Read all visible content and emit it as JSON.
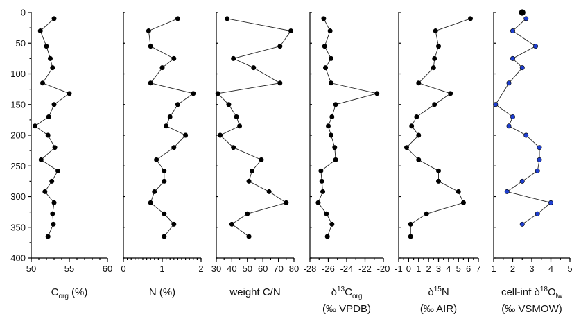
{
  "depth_axis": {
    "ticks": [
      0,
      50,
      100,
      150,
      200,
      250,
      300,
      350,
      400
    ],
    "ylim": [
      400,
      0
    ]
  },
  "chart_data": [
    {
      "type": "scatter",
      "title_main": "C",
      "title_sub": "org",
      "title_tail": " (%)",
      "xlim": [
        50,
        60
      ],
      "xticks": [
        "50",
        "55",
        "60"
      ],
      "xtick_values": [
        50,
        55,
        60
      ],
      "minor_step": 1,
      "marker_color": "#000000",
      "points": [
        [
          53,
          10
        ],
        [
          51.2,
          30
        ],
        [
          52,
          55
        ],
        [
          52.5,
          75
        ],
        [
          52.8,
          90
        ],
        [
          51.5,
          115
        ],
        [
          55,
          132
        ],
        [
          53,
          150
        ],
        [
          52.3,
          170
        ],
        [
          50.5,
          185
        ],
        [
          52.2,
          200
        ],
        [
          53.1,
          220
        ],
        [
          51.3,
          240
        ],
        [
          53.5,
          258
        ],
        [
          52.7,
          275
        ],
        [
          51.8,
          292
        ],
        [
          53,
          310
        ],
        [
          52.8,
          328
        ],
        [
          52.9,
          345
        ],
        [
          52.2,
          365
        ]
      ]
    },
    {
      "type": "scatter",
      "title_main": "N (%)",
      "xlim": [
        0,
        2
      ],
      "xticks": [
        "0",
        "1",
        "2"
      ],
      "xtick_values": [
        0,
        1,
        2
      ],
      "minor_step": 0.1,
      "marker_color": "#000000",
      "points": [
        [
          1.4,
          10
        ],
        [
          0.65,
          30
        ],
        [
          0.7,
          55
        ],
        [
          1.3,
          75
        ],
        [
          1.0,
          90
        ],
        [
          0.7,
          115
        ],
        [
          1.8,
          132
        ],
        [
          1.4,
          150
        ],
        [
          1.2,
          170
        ],
        [
          1.1,
          185
        ],
        [
          1.6,
          200
        ],
        [
          1.3,
          220
        ],
        [
          0.85,
          240
        ],
        [
          1.05,
          258
        ],
        [
          1.05,
          275
        ],
        [
          0.8,
          292
        ],
        [
          0.7,
          310
        ],
        [
          1.05,
          328
        ],
        [
          1.3,
          345
        ],
        [
          1.05,
          365
        ]
      ]
    },
    {
      "type": "scatter",
      "title_main": "weight C/N",
      "xlim": [
        30,
        80
      ],
      "xticks": [
        "30",
        "40",
        "50",
        "60",
        "70",
        "80"
      ],
      "xtick_values": [
        30,
        40,
        50,
        60,
        70,
        80
      ],
      "minor_step": 5,
      "marker_color": "#000000",
      "points": [
        [
          37,
          10
        ],
        [
          78,
          30
        ],
        [
          71,
          55
        ],
        [
          41,
          75
        ],
        [
          54,
          90
        ],
        [
          71,
          115
        ],
        [
          31,
          132
        ],
        [
          38,
          150
        ],
        [
          43,
          170
        ],
        [
          45,
          185
        ],
        [
          32.5,
          200
        ],
        [
          41,
          220
        ],
        [
          59,
          240
        ],
        [
          53,
          258
        ],
        [
          51,
          275
        ],
        [
          64,
          292
        ],
        [
          75,
          310
        ],
        [
          50,
          328
        ],
        [
          40,
          345
        ],
        [
          51,
          365
        ]
      ]
    },
    {
      "type": "scatter",
      "title_main": "δ",
      "title_sup": "13",
      "title_mid": "C",
      "title_sub": "org",
      "title_line2": "(‰ VPDB)",
      "xlim": [
        -28,
        -20
      ],
      "xticks": [
        "-28",
        "-26",
        "-24",
        "-22",
        "-20"
      ],
      "xtick_values": [
        -28,
        -26,
        -24,
        -22,
        -20
      ],
      "minor_step": 1,
      "marker_color": "#000000",
      "points": [
        [
          -26.5,
          10
        ],
        [
          -25.8,
          30
        ],
        [
          -26.4,
          55
        ],
        [
          -25.7,
          75
        ],
        [
          -26.3,
          90
        ],
        [
          -25.7,
          115
        ],
        [
          -20.7,
          132
        ],
        [
          -25.2,
          150
        ],
        [
          -25.6,
          170
        ],
        [
          -26.0,
          185
        ],
        [
          -25.7,
          200
        ],
        [
          -25.3,
          220
        ],
        [
          -25.2,
          240
        ],
        [
          -26.8,
          258
        ],
        [
          -26.7,
          275
        ],
        [
          -26.6,
          292
        ],
        [
          -27.1,
          310
        ],
        [
          -26.2,
          328
        ],
        [
          -25.6,
          345
        ],
        [
          -26.1,
          365
        ]
      ]
    },
    {
      "type": "scatter",
      "title_main": "δ",
      "title_sup": "15",
      "title_mid": "N",
      "title_line2": "(‰ AIR)",
      "xlim": [
        -1,
        7
      ],
      "xticks": [
        "-1",
        "0",
        "1",
        "2",
        "3",
        "4",
        "5",
        "6",
        "7"
      ],
      "xtick_values": [
        -1,
        0,
        1,
        2,
        3,
        4,
        5,
        6,
        7
      ],
      "minor_step": 0.5,
      "marker_color": "#000000",
      "points": [
        [
          6.2,
          10
        ],
        [
          2.7,
          30
        ],
        [
          3.0,
          55
        ],
        [
          2.6,
          75
        ],
        [
          2.5,
          90
        ],
        [
          1.0,
          115
        ],
        [
          4.2,
          132
        ],
        [
          2.6,
          150
        ],
        [
          0.8,
          170
        ],
        [
          0.3,
          185
        ],
        [
          1.0,
          200
        ],
        [
          -0.2,
          220
        ],
        [
          1.0,
          240
        ],
        [
          3.0,
          258
        ],
        [
          3.0,
          275
        ],
        [
          5.0,
          292
        ],
        [
          5.5,
          310
        ],
        [
          1.8,
          328
        ],
        [
          0.2,
          345
        ],
        [
          0.2,
          365
        ]
      ]
    },
    {
      "type": "scatter",
      "title_main": "cell-inf δ",
      "title_sup": "18",
      "title_mid": "O",
      "title_sub": "lw",
      "title_line2": "(‰ VSMOW)",
      "xlim": [
        1,
        5
      ],
      "xticks": [
        "1",
        "2",
        "3",
        "4",
        "5"
      ],
      "xtick_values": [
        1,
        2,
        3,
        4,
        5
      ],
      "minor_step": 0.5,
      "marker_color": "#1f3fd0",
      "marker_highlight_color": "#000000",
      "highlight_point": [
        2.5,
        0
      ],
      "points": [
        [
          2.7,
          10
        ],
        [
          2.0,
          30
        ],
        [
          3.2,
          55
        ],
        [
          2.0,
          75
        ],
        [
          2.5,
          90
        ],
        [
          1.8,
          115
        ],
        [
          1.1,
          150
        ],
        [
          2.0,
          170
        ],
        [
          1.8,
          185
        ],
        [
          2.7,
          200
        ],
        [
          3.4,
          220
        ],
        [
          3.4,
          240
        ],
        [
          3.3,
          258
        ],
        [
          2.5,
          275
        ],
        [
          1.7,
          292
        ],
        [
          4.0,
          310
        ],
        [
          3.3,
          328
        ],
        [
          2.5,
          345
        ]
      ]
    }
  ]
}
